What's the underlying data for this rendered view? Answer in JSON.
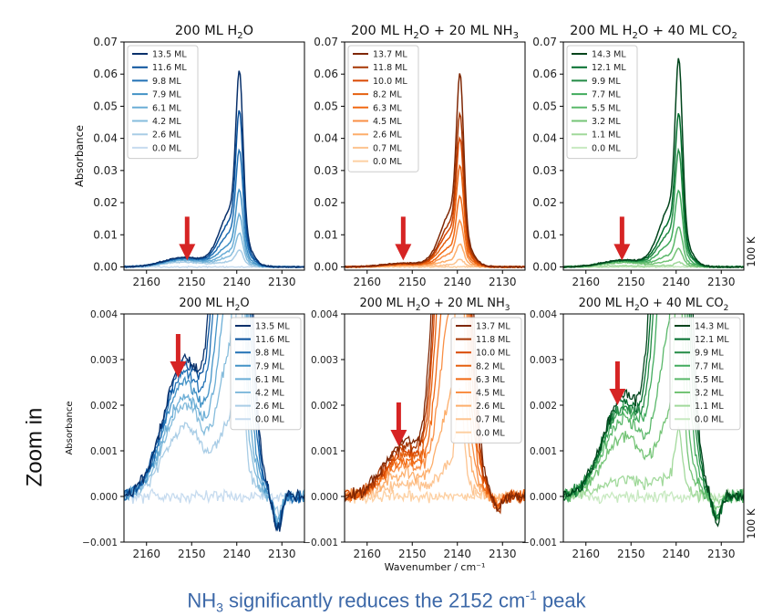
{
  "caption": {
    "pre": "NH",
    "sub": "3",
    "mid": " significantly reduces the 2152 cm",
    "sup": "-1",
    "post": " peak"
  },
  "side_label": "Zoom in",
  "chart_data": [
    {
      "type": "line",
      "panel": "top-left",
      "palette": "blue",
      "title": [
        "200 ML H",
        "2",
        "O"
      ],
      "xlabel": "",
      "ylabel": "Absorbance",
      "temperature_label": "",
      "xlim": [
        2165,
        2125
      ],
      "ylim": [
        -0.001,
        0.07
      ],
      "xticks": [
        2160,
        2150,
        2140,
        2130
      ],
      "yticks": [
        0.0,
        0.01,
        0.02,
        0.03,
        0.04,
        0.05,
        0.06,
        0.07
      ],
      "ytick_labels": [
        "0.00",
        "0.01",
        "0.02",
        "0.03",
        "0.04",
        "0.05",
        "0.06",
        "0.07"
      ],
      "legend_loc": "upper-left",
      "arrow_x": 2151,
      "arrow_tip_y": 0.002,
      "series": [
        {
          "name": "13.5 ML",
          "peak": 0.064,
          "shoulder": 0.003
        },
        {
          "name": "11.6 ML",
          "peak": 0.051,
          "shoulder": 0.0029
        },
        {
          "name": "9.8 ML",
          "peak": 0.038,
          "shoulder": 0.0027
        },
        {
          "name": "7.9 ML",
          "peak": 0.025,
          "shoulder": 0.0025
        },
        {
          "name": "6.1 ML",
          "peak": 0.017,
          "shoulder": 0.0022
        },
        {
          "name": "4.2 ML",
          "peak": 0.011,
          "shoulder": 0.002
        },
        {
          "name": "2.6 ML",
          "peak": 0.0055,
          "shoulder": 0.0015
        },
        {
          "name": "0.0 ML",
          "peak": 0.0,
          "shoulder": 0.0
        }
      ]
    },
    {
      "type": "line",
      "panel": "top-middle",
      "palette": "orange",
      "title": [
        "200 ML H",
        "2",
        "O + 20 ML NH",
        "3",
        ""
      ],
      "xlabel": "",
      "ylabel": "",
      "temperature_label": "",
      "xlim": [
        2165,
        2125
      ],
      "ylim": [
        -0.001,
        0.07
      ],
      "xticks": [
        2160,
        2150,
        2140,
        2130
      ],
      "yticks": [
        0.0,
        0.01,
        0.02,
        0.03,
        0.04,
        0.05,
        0.06,
        0.07
      ],
      "ytick_labels": [
        "0.00",
        "0.01",
        "0.02",
        "0.03",
        "0.04",
        "0.05",
        "0.06",
        "0.07"
      ],
      "legend_loc": "upper-left",
      "arrow_x": 2152,
      "arrow_tip_y": 0.002,
      "series": [
        {
          "name": "13.7 ML",
          "peak": 0.063,
          "shoulder": 0.0012
        },
        {
          "name": "11.8 ML",
          "peak": 0.05,
          "shoulder": 0.0011
        },
        {
          "name": "10.0 ML",
          "peak": 0.042,
          "shoulder": 0.001
        },
        {
          "name": "8.2 ML",
          "peak": 0.033,
          "shoulder": 0.0009
        },
        {
          "name": "6.3 ML",
          "peak": 0.023,
          "shoulder": 0.0008
        },
        {
          "name": "4.5 ML",
          "peak": 0.015,
          "shoulder": 0.0007
        },
        {
          "name": "2.6 ML",
          "peak": 0.0075,
          "shoulder": 0.0005
        },
        {
          "name": "0.7 ML",
          "peak": 0.0025,
          "shoulder": 0.0003
        },
        {
          "name": "0.0 ML",
          "peak": 0.0,
          "shoulder": 0.0
        }
      ]
    },
    {
      "type": "line",
      "panel": "top-right",
      "palette": "green",
      "title": [
        "200 ML H",
        "2",
        "O + 40 ML CO",
        "2",
        ""
      ],
      "xlabel": "",
      "ylabel": "",
      "temperature_label": "100 K",
      "xlim": [
        2165,
        2125
      ],
      "ylim": [
        -0.001,
        0.07
      ],
      "xticks": [
        2160,
        2150,
        2140,
        2130
      ],
      "yticks": [
        0.0,
        0.01,
        0.02,
        0.03,
        0.04,
        0.05,
        0.06,
        0.07
      ],
      "ytick_labels": [
        "0.00",
        "0.01",
        "0.02",
        "0.03",
        "0.04",
        "0.05",
        "0.06",
        "0.07"
      ],
      "legend_loc": "upper-left",
      "arrow_x": 2152,
      "arrow_tip_y": 0.002,
      "series": [
        {
          "name": "14.3 ML",
          "peak": 0.068,
          "shoulder": 0.0022
        },
        {
          "name": "12.1 ML",
          "peak": 0.05,
          "shoulder": 0.0021
        },
        {
          "name": "9.9 ML",
          "peak": 0.038,
          "shoulder": 0.002
        },
        {
          "name": "7.7 ML",
          "peak": 0.025,
          "shoulder": 0.0019
        },
        {
          "name": "5.5 ML",
          "peak": 0.013,
          "shoulder": 0.0017
        },
        {
          "name": "3.2 ML",
          "peak": 0.006,
          "shoulder": 0.0013
        },
        {
          "name": "1.1 ML",
          "peak": 0.0015,
          "shoulder": 0.0004
        },
        {
          "name": "0.0 ML",
          "peak": 0.0,
          "shoulder": 0.0
        }
      ]
    },
    {
      "type": "line",
      "panel": "bottom-left",
      "palette": "blue",
      "title": [
        "200 ML H",
        "2",
        "O"
      ],
      "xlabel": "",
      "ylabel": "Absorbance",
      "temperature_label": "",
      "xlim": [
        2165,
        2125
      ],
      "ylim": [
        -0.001,
        0.004
      ],
      "xticks": [
        2160,
        2150,
        2140,
        2130
      ],
      "yticks": [
        -0.001,
        0.0,
        0.001,
        0.002,
        0.003,
        0.004
      ],
      "ytick_labels": [
        "−0.001",
        "0.000",
        "0.001",
        "0.002",
        "0.003",
        "0.004"
      ],
      "legend_loc": "upper-right",
      "arrow_x": 2153,
      "arrow_tip_y": 0.0026,
      "series": [
        {
          "name": "13.5 ML",
          "peak": 0.064,
          "shoulder": 0.003
        },
        {
          "name": "11.6 ML",
          "peak": 0.051,
          "shoulder": 0.0029
        },
        {
          "name": "9.8 ML",
          "peak": 0.038,
          "shoulder": 0.0027
        },
        {
          "name": "7.9 ML",
          "peak": 0.025,
          "shoulder": 0.0025
        },
        {
          "name": "6.1 ML",
          "peak": 0.017,
          "shoulder": 0.0022
        },
        {
          "name": "4.2 ML",
          "peak": 0.011,
          "shoulder": 0.002
        },
        {
          "name": "2.6 ML",
          "peak": 0.0055,
          "shoulder": 0.0015
        },
        {
          "name": "0.0 ML",
          "peak": 0.0,
          "shoulder": 0.0
        }
      ]
    },
    {
      "type": "line",
      "panel": "bottom-middle",
      "palette": "orange",
      "title": [
        "200 ML H",
        "2",
        "O + 20 ML NH",
        "3",
        ""
      ],
      "xlabel": "Wavenumber / cm⁻¹",
      "ylabel": "",
      "temperature_label": "",
      "xlim": [
        2165,
        2125
      ],
      "ylim": [
        -0.001,
        0.004
      ],
      "xticks": [
        2160,
        2150,
        2140,
        2130
      ],
      "yticks": [
        -0.001,
        0.0,
        0.001,
        0.002,
        0.003,
        0.004
      ],
      "ytick_labels": [
        "−0.001",
        "0.000",
        "0.001",
        "0.002",
        "0.003",
        "0.004"
      ],
      "legend_loc": "upper-right",
      "arrow_x": 2153,
      "arrow_tip_y": 0.0011,
      "series": [
        {
          "name": "13.7 ML",
          "peak": 0.063,
          "shoulder": 0.0012
        },
        {
          "name": "11.8 ML",
          "peak": 0.05,
          "shoulder": 0.0011
        },
        {
          "name": "10.0 ML",
          "peak": 0.042,
          "shoulder": 0.001
        },
        {
          "name": "8.2 ML",
          "peak": 0.033,
          "shoulder": 0.0009
        },
        {
          "name": "6.3 ML",
          "peak": 0.023,
          "shoulder": 0.0008
        },
        {
          "name": "4.5 ML",
          "peak": 0.015,
          "shoulder": 0.0007
        },
        {
          "name": "2.6 ML",
          "peak": 0.0075,
          "shoulder": 0.0005
        },
        {
          "name": "0.7 ML",
          "peak": 0.0025,
          "shoulder": 0.0003
        },
        {
          "name": "0.0 ML",
          "peak": 0.0,
          "shoulder": 0.0
        }
      ]
    },
    {
      "type": "line",
      "panel": "bottom-right",
      "palette": "green",
      "title": [
        "200 ML H",
        "2",
        "O + 40 ML CO",
        "2",
        ""
      ],
      "xlabel": "",
      "ylabel": "",
      "temperature_label": "100 K",
      "xlim": [
        2165,
        2125
      ],
      "ylim": [
        -0.001,
        0.004
      ],
      "xticks": [
        2160,
        2150,
        2140,
        2130
      ],
      "yticks": [
        -0.001,
        0.0,
        0.001,
        0.002,
        0.003,
        0.004
      ],
      "ytick_labels": [
        "−0.001",
        "0.000",
        "0.001",
        "0.002",
        "0.003",
        "0.004"
      ],
      "legend_loc": "upper-right",
      "arrow_x": 2153,
      "arrow_tip_y": 0.002,
      "series": [
        {
          "name": "14.3 ML",
          "peak": 0.068,
          "shoulder": 0.0022
        },
        {
          "name": "12.1 ML",
          "peak": 0.05,
          "shoulder": 0.0021
        },
        {
          "name": "9.9 ML",
          "peak": 0.038,
          "shoulder": 0.002
        },
        {
          "name": "7.7 ML",
          "peak": 0.025,
          "shoulder": 0.0019
        },
        {
          "name": "5.5 ML",
          "peak": 0.013,
          "shoulder": 0.0017
        },
        {
          "name": "3.2 ML",
          "peak": 0.006,
          "shoulder": 0.0013
        },
        {
          "name": "1.1 ML",
          "peak": 0.0015,
          "shoulder": 0.0004
        },
        {
          "name": "0.0 ML",
          "peak": 0.0,
          "shoulder": 0.0
        }
      ]
    }
  ],
  "colors": {
    "arrow": "#d62424",
    "caption": "#3c68a8",
    "blue": [
      "#08306b",
      "#08519c",
      "#2171b5",
      "#4292c6",
      "#6baed6",
      "#85bcdc",
      "#a9cde6",
      "#c6dbef"
    ],
    "orange": [
      "#7f2704",
      "#a63603",
      "#d94801",
      "#e5600f",
      "#f16913",
      "#f98f45",
      "#fdae6b",
      "#fdc38f",
      "#fdd0a2"
    ],
    "green": [
      "#00441b",
      "#006d2c",
      "#238b45",
      "#41ab5d",
      "#5ab86a",
      "#74c476",
      "#a1d99b",
      "#c7e9c0"
    ]
  }
}
